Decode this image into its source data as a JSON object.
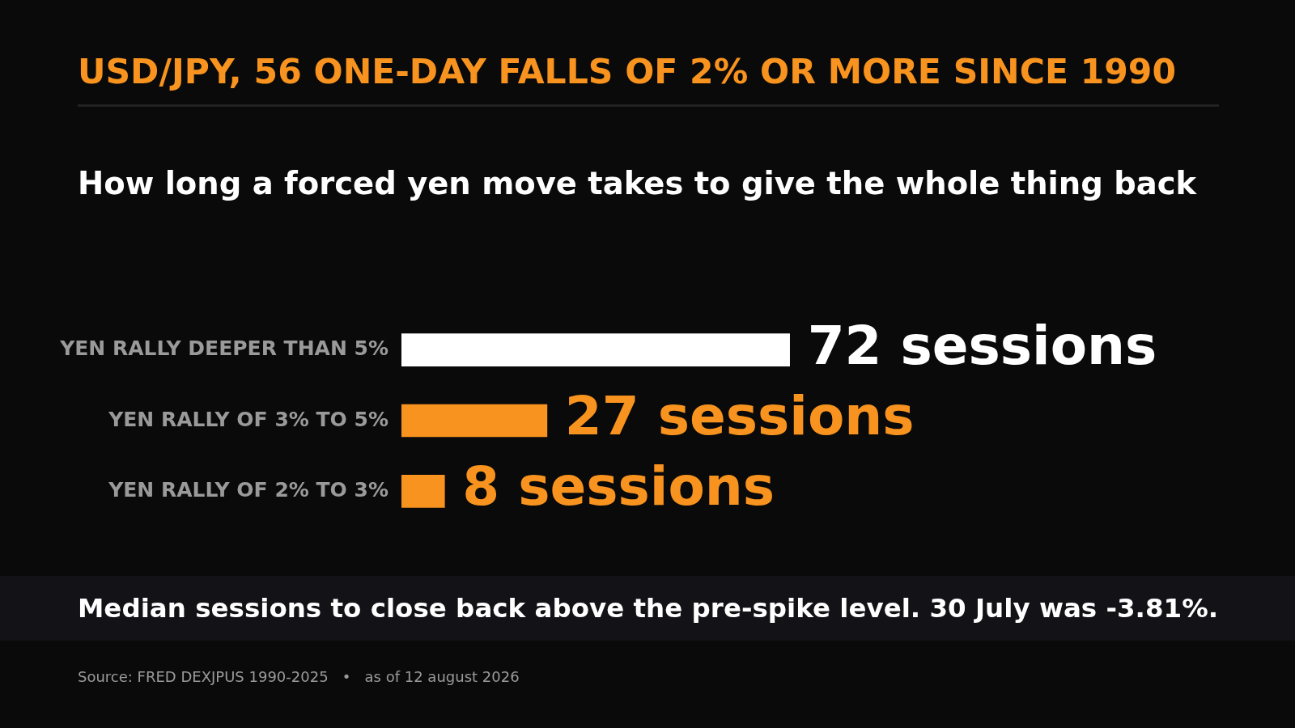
{
  "chart_data": {
    "type": "bar",
    "orientation": "horizontal",
    "title": "USD/JPY, 56 ONE-DAY FALLS OF 2% OR MORE SINCE 1990",
    "subtitle": "How long a forced yen move takes to give the whole thing back",
    "categories": [
      "YEN RALLY DEEPER THAN 5%",
      "YEN RALLY OF 3% TO 5%",
      "YEN RALLY OF 2% TO 3%"
    ],
    "values": [
      72,
      27,
      8
    ],
    "colors": [
      "#ffffff",
      "#f7931e",
      "#f7931e"
    ],
    "value_labels": [
      "72 sessions",
      "27 sessions",
      "8 sessions"
    ],
    "annotations": [
      "Median sessions to close back above the pre-spike level. 30 July was -3.81%.",
      "Source: FRED DEXJPUS 1990-2025   •   as of 12 august 2026"
    ],
    "legend": false
  }
}
